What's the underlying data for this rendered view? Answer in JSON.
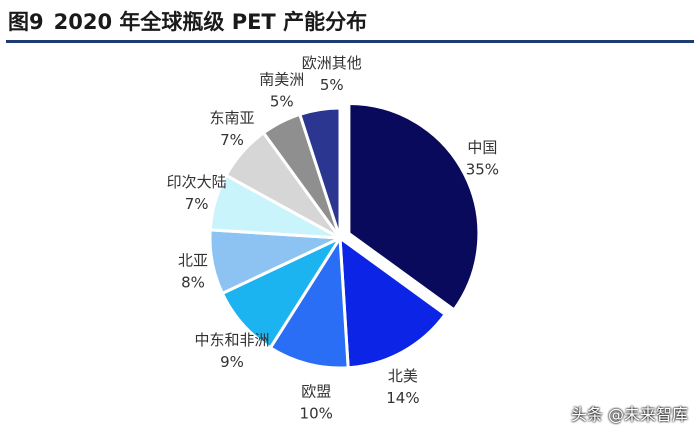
{
  "figure": {
    "number": "图9",
    "title": "2020 年全球瓶级 PET 产能分布"
  },
  "chart_data": {
    "type": "pie",
    "title": "2020 年全球瓶级 PET 产能分布",
    "start": "12 o'clock",
    "direction": "clockwise",
    "slices": [
      {
        "label": "中国",
        "value": 35,
        "display": "35%",
        "color": "#0a0a5c",
        "exploded": true
      },
      {
        "label": "北美",
        "value": 14,
        "display": "14%",
        "color": "#0b24e6",
        "exploded": false
      },
      {
        "label": "欧盟",
        "value": 10,
        "display": "10%",
        "color": "#2a6ef5",
        "exploded": false
      },
      {
        "label": "中东和非洲",
        "value": 9,
        "display": "9%",
        "color": "#1bb3f0",
        "exploded": false
      },
      {
        "label": "北亚",
        "value": 8,
        "display": "8%",
        "color": "#8cc3f3",
        "exploded": false
      },
      {
        "label": "印次大陆",
        "value": 7,
        "display": "7%",
        "color": "#c9f4fb",
        "exploded": false
      },
      {
        "label": "东南亚",
        "value": 7,
        "display": "7%",
        "color": "#d6d6d6",
        "exploded": false
      },
      {
        "label": "南美洲",
        "value": 5,
        "display": "5%",
        "color": "#8f8f8f",
        "exploded": false
      },
      {
        "label": "欧洲其他",
        "value": 5,
        "display": "5%",
        "color": "#2b3690",
        "exploded": false
      }
    ]
  },
  "watermark": "头条 @未来智库"
}
